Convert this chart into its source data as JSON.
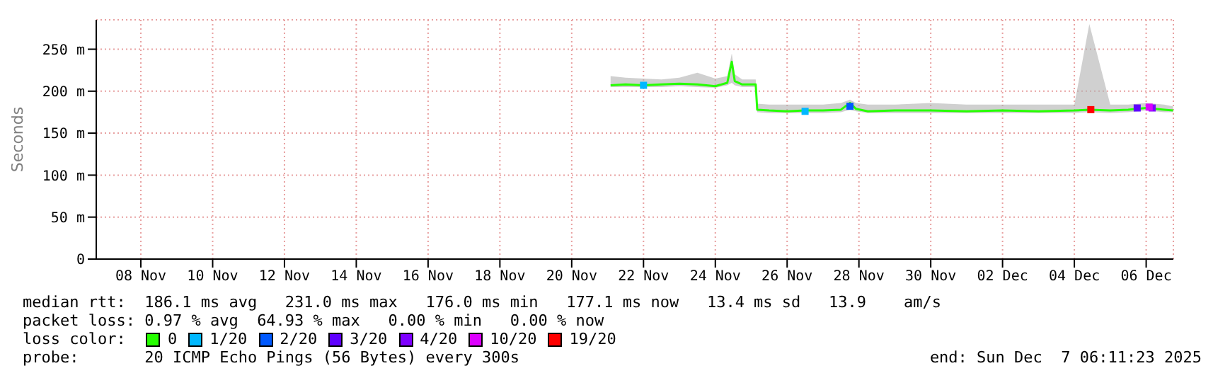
{
  "chart_data": {
    "type": "line",
    "ylabel": "Seconds",
    "legend_title": "loss color:",
    "legend": "bottom",
    "grid": true,
    "xlim": [
      "2025-11-07T06:11",
      "2025-12-07T06:11"
    ],
    "xticks": [
      {
        "value": "2025-11-08T12:00",
        "label": "08 Nov"
      },
      {
        "value": "2025-11-10T12:00",
        "label": "10 Nov"
      },
      {
        "value": "2025-11-12T12:00",
        "label": "12 Nov"
      },
      {
        "value": "2025-11-14T12:00",
        "label": "14 Nov"
      },
      {
        "value": "2025-11-16T12:00",
        "label": "16 Nov"
      },
      {
        "value": "2025-11-18T12:00",
        "label": "18 Nov"
      },
      {
        "value": "2025-11-20T12:00",
        "label": "20 Nov"
      },
      {
        "value": "2025-11-22T12:00",
        "label": "22 Nov"
      },
      {
        "value": "2025-11-24T12:00",
        "label": "24 Nov"
      },
      {
        "value": "2025-11-26T12:00",
        "label": "26 Nov"
      },
      {
        "value": "2025-11-28T12:00",
        "label": "28 Nov"
      },
      {
        "value": "2025-11-30T12:00",
        "label": "30 Nov"
      },
      {
        "value": "2025-12-02T12:00",
        "label": "02 Dec"
      },
      {
        "value": "2025-12-04T12:00",
        "label": "04 Dec"
      },
      {
        "value": "2025-12-06T12:00",
        "label": "06 Dec"
      }
    ],
    "ylim": [
      0,
      285
    ],
    "yticks": [
      0,
      {
        "value": 50,
        "label": "50 m"
      },
      {
        "value": 100,
        "label": "100 m"
      },
      {
        "value": 150,
        "label": "150 m"
      },
      {
        "value": 200,
        "label": "200 m"
      },
      {
        "value": 250,
        "label": "250 m"
      }
    ],
    "series": [
      {
        "name": "0",
        "color": "#26ff00",
        "x": [
          "2025-11-21T14:00",
          "2025-11-22T00:00",
          "2025-11-22T12:00",
          "2025-11-23T00:00",
          "2025-11-23T12:00",
          "2025-11-24T00:00",
          "2025-11-24T12:00",
          "2025-11-24T20:00",
          "2025-11-24T23:00",
          "2025-11-25T01:00",
          "2025-11-25T06:00",
          "2025-11-25T15:00",
          "2025-11-25T16:00",
          "2025-11-26T00:00",
          "2025-11-26T12:00",
          "2025-11-27T00:00",
          "2025-11-27T12:00",
          "2025-11-28T00:00",
          "2025-11-28T06:00",
          "2025-11-28T10:00",
          "2025-11-28T18:00",
          "2025-11-29T12:00",
          "2025-11-30T12:00",
          "2025-12-01T12:00",
          "2025-12-02T12:00",
          "2025-12-03T12:00",
          "2025-12-04T12:00",
          "2025-12-04T22:00",
          "2025-12-05T12:00",
          "2025-12-06T00:00",
          "2025-12-06T12:00",
          "2025-12-07T00:00",
          "2025-12-07T06:00"
        ],
        "values": [
          207,
          208,
          207,
          208,
          209,
          208,
          206,
          210,
          235,
          212,
          208,
          208,
          178,
          177,
          176,
          177,
          177,
          178,
          186,
          179,
          176,
          177,
          177,
          176,
          177,
          176,
          177,
          178,
          177,
          178,
          180,
          178,
          177
        ],
        "lower": [
          205,
          205,
          205,
          205,
          206,
          205,
          204,
          207,
          210,
          207,
          205,
          205,
          175,
          174,
          174,
          174,
          174,
          175,
          178,
          176,
          174,
          174,
          174,
          174,
          174,
          174,
          174,
          175,
          174,
          175,
          177,
          175,
          175
        ],
        "upper": [
          218,
          216,
          215,
          214,
          216,
          222,
          215,
          218,
          245,
          220,
          214,
          214,
          185,
          184,
          184,
          184,
          184,
          186,
          190,
          186,
          184,
          184,
          186,
          184,
          184,
          184,
          184,
          280,
          184,
          184,
          186,
          184,
          182
        ]
      },
      {
        "name": "1/20",
        "type": "scatter",
        "marker": "square",
        "color": "#00b8ff",
        "x": [
          "2025-11-22T12:00",
          "2025-11-27T00:00"
        ],
        "values": [
          207,
          176
        ]
      },
      {
        "name": "2/20",
        "type": "scatter",
        "marker": "square",
        "color": "#0059ff",
        "x": [
          "2025-11-28T06:00"
        ],
        "values": [
          182
        ]
      },
      {
        "name": "3/20",
        "type": "scatter",
        "marker": "square",
        "color": "#5e00ff",
        "x": [
          "2025-12-06T06:00"
        ],
        "values": [
          180
        ]
      },
      {
        "name": "4/20",
        "type": "scatter",
        "marker": "square",
        "color": "#7e00ff",
        "x": [
          "2025-12-06T16:00"
        ],
        "values": [
          180
        ]
      },
      {
        "name": "10/20",
        "type": "scatter",
        "marker": "square",
        "color": "#dd00ff",
        "x": [
          "2025-12-06T14:00"
        ],
        "values": [
          181
        ]
      },
      {
        "name": "19/20",
        "type": "scatter",
        "marker": "square",
        "color": "#ff0000",
        "x": [
          "2025-12-04T23:00"
        ],
        "values": [
          178
        ]
      }
    ],
    "annotations": [
      "median rtt:  186.1 ms avg   231.0 ms max   176.0 ms min   177.1 ms now   13.4 ms sd   13.9    am/s",
      "packet loss: 0.97 % avg  64.93 % max   0.00 % min   0.00 % now",
      "probe:       20 ICMP Echo Pings (56 Bytes) every 300s",
      "end: Sun Dec  7 06:11:23 2025"
    ]
  }
}
